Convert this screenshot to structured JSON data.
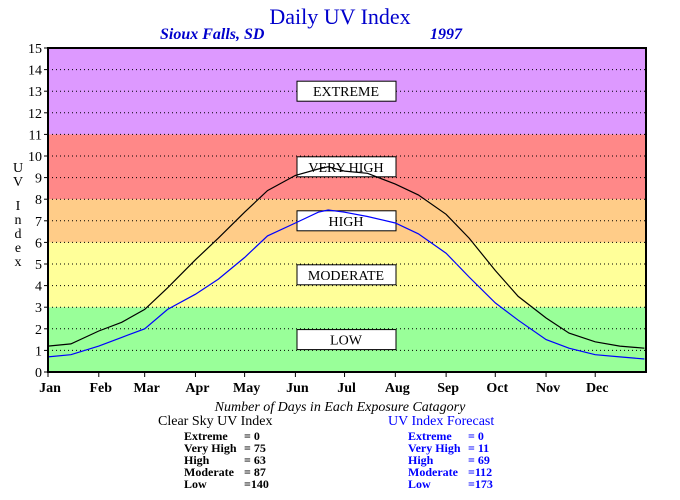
{
  "header": {
    "title": "Daily UV Index",
    "location": "Sioux Falls, SD",
    "year": "1997"
  },
  "chart_data": {
    "type": "line",
    "ylabel": "UV Index",
    "ylim": [
      0,
      15
    ],
    "yticks": [
      "0",
      "1",
      "2",
      "3",
      "4",
      "5",
      "6",
      "7",
      "8",
      "9",
      "10",
      "11",
      "12",
      "13",
      "14",
      "15"
    ],
    "xlim": [
      1,
      366
    ],
    "months": [
      "Jan",
      "Feb",
      "Mar",
      "Apr",
      "May",
      "Jun",
      "Jul",
      "Aug",
      "Sep",
      "Oct",
      "Nov",
      "Dec"
    ],
    "month_start_days": [
      1,
      32,
      60,
      91,
      121,
      152,
      182,
      213,
      244,
      274,
      305,
      335
    ],
    "grid": true,
    "bands": [
      {
        "label": "LOW",
        "from": 0,
        "to": 3,
        "color": "#99ff99"
      },
      {
        "label": "MODERATE",
        "from": 3,
        "to": 6,
        "color": "#ffff99"
      },
      {
        "label": "HIGH",
        "from": 6,
        "to": 8,
        "color": "#ffcc88"
      },
      {
        "label": "VERY HIGH",
        "from": 8,
        "to": 11,
        "color": "#ff8888"
      },
      {
        "label": "EXTREME",
        "from": 11,
        "to": 15,
        "color": "#dd99ff"
      }
    ],
    "series": [
      {
        "name": "Clear Sky UV Index",
        "color": "#000000",
        "x": [
          1,
          15,
          32,
          46,
          60,
          74,
          91,
          105,
          121,
          135,
          152,
          166,
          172,
          182,
          196,
          213,
          227,
          244,
          258,
          274,
          288,
          305,
          319,
          335,
          350,
          365
        ],
        "values": [
          1.2,
          1.3,
          1.9,
          2.3,
          2.9,
          3.9,
          5.2,
          6.2,
          7.4,
          8.4,
          9.1,
          9.4,
          9.5,
          9.3,
          9.2,
          8.7,
          8.2,
          7.3,
          6.2,
          4.7,
          3.5,
          2.5,
          1.8,
          1.4,
          1.2,
          1.1
        ]
      },
      {
        "name": "UV Index Forecast",
        "color": "#0000ff",
        "x": [
          1,
          15,
          32,
          46,
          60,
          74,
          91,
          105,
          121,
          135,
          152,
          166,
          172,
          182,
          196,
          213,
          227,
          244,
          258,
          274,
          288,
          305,
          319,
          335,
          350,
          365
        ],
        "values": [
          0.7,
          0.8,
          1.2,
          1.6,
          2.0,
          2.9,
          3.6,
          4.3,
          5.3,
          6.3,
          6.9,
          7.4,
          7.5,
          7.4,
          7.2,
          6.9,
          6.4,
          5.5,
          4.4,
          3.2,
          2.4,
          1.5,
          1.1,
          0.8,
          0.7,
          0.6
        ]
      }
    ]
  },
  "summary": {
    "title": "Number of Days in Each Exposure Catagory",
    "clear_sky": {
      "title": "Clear Sky UV Index",
      "rows": [
        {
          "label": "Extreme",
          "value": "=   0"
        },
        {
          "label": "Very High",
          "value": "= 75"
        },
        {
          "label": "High",
          "value": "= 63"
        },
        {
          "label": "Moderate",
          "value": "= 87"
        },
        {
          "label": "Low",
          "value": "=140"
        }
      ]
    },
    "forecast": {
      "title": "UV Index Forecast",
      "rows": [
        {
          "label": "Extreme",
          "value": "=   0"
        },
        {
          "label": "Very High",
          "value": "= 11"
        },
        {
          "label": "High",
          "value": "= 69"
        },
        {
          "label": "Moderate",
          "value": "=112"
        },
        {
          "label": "Low",
          "value": "=173"
        }
      ]
    }
  },
  "colors": {
    "title": "#0000cc",
    "forecast": "#0000ff",
    "clear_sky": "#000000"
  }
}
